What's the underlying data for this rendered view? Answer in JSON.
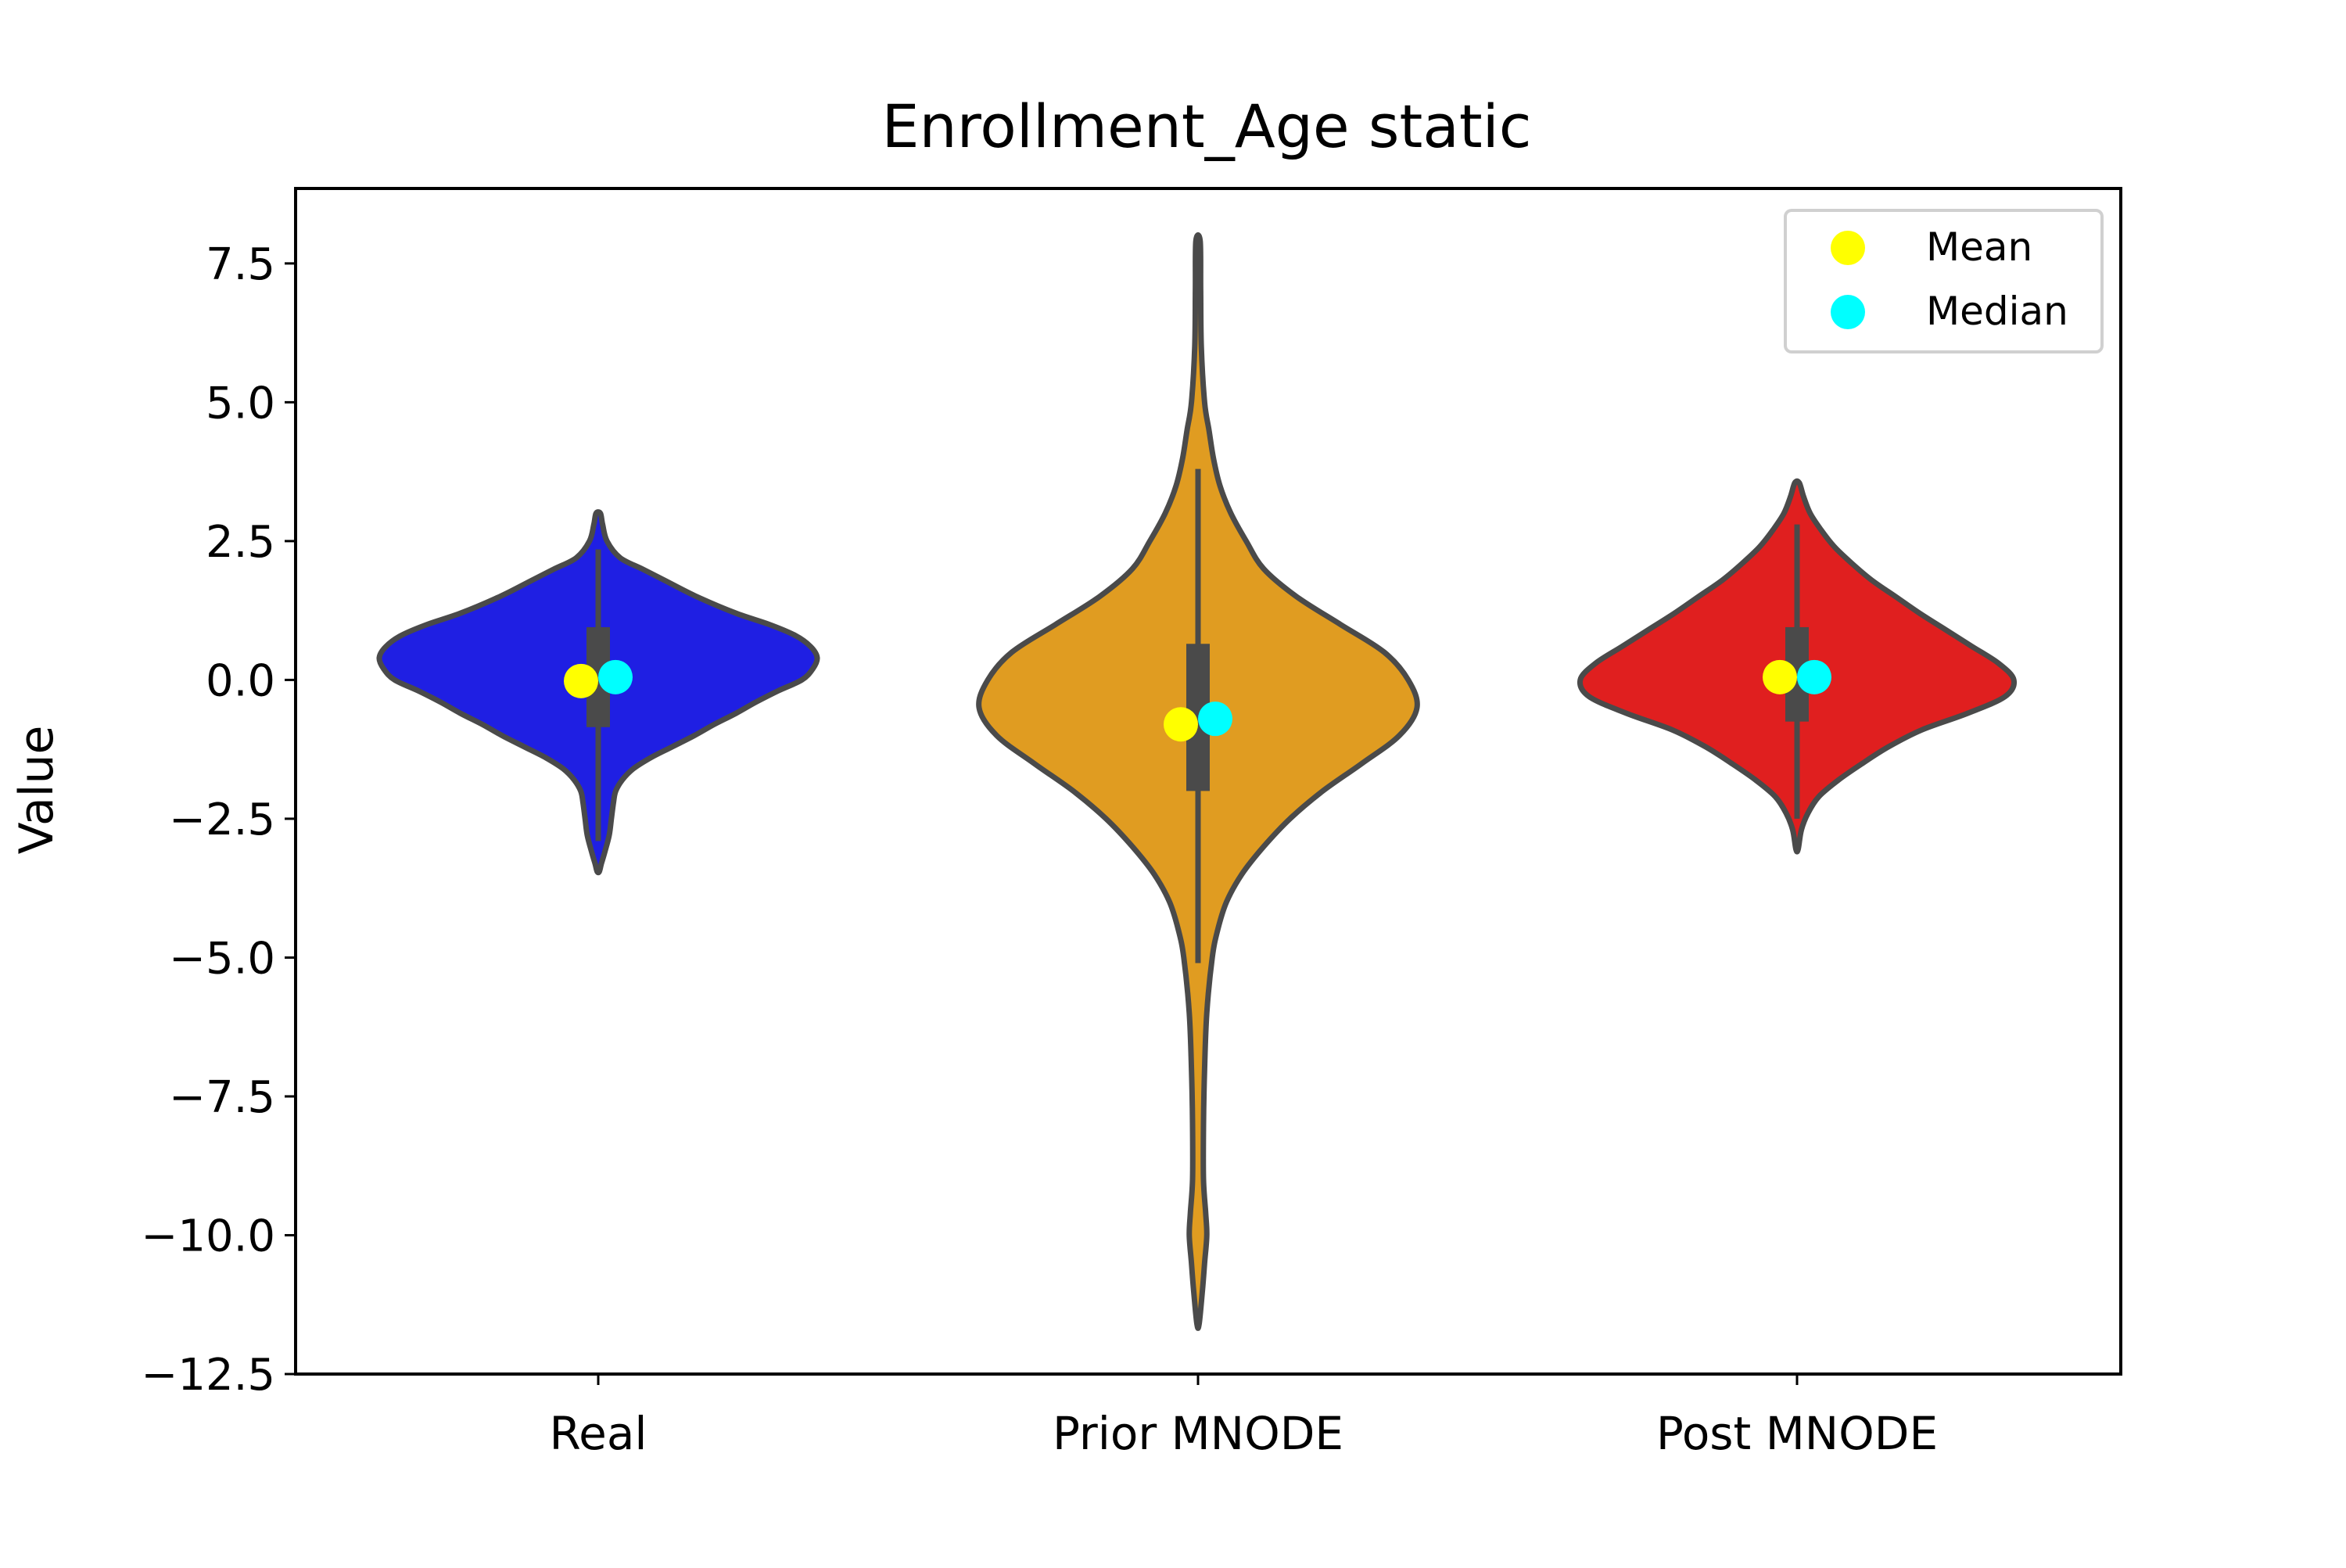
{
  "chart_data": {
    "type": "violin",
    "title": "Enrollment_Age static",
    "xlabel": "",
    "ylabel": "Value",
    "ylim": [
      -12.5,
      8.85
    ],
    "yticks": [
      7.5,
      5.0,
      2.5,
      0.0,
      -2.5,
      -5.0,
      -7.5,
      -10.0,
      -12.5
    ],
    "ytick_labels": [
      "7.5",
      "5.0",
      "2.5",
      "0.0",
      "−2.5",
      "−5.0",
      "−7.5",
      "−10.0",
      "−12.5"
    ],
    "categories": [
      "Real",
      "Prior MNODE",
      "Post MNODE"
    ],
    "grid": false,
    "legend": {
      "position": "top-right",
      "entries": [
        {
          "label": "Mean",
          "color": "#ffff00"
        },
        {
          "label": "Median",
          "color": "#00ffff"
        }
      ]
    },
    "violins": [
      {
        "name": "Real",
        "color": "#1f1fe3",
        "min": -3.45,
        "max": 3.0,
        "q1": -0.85,
        "q3": 0.95,
        "whisker_low": -2.9,
        "whisker_high": 2.35,
        "mean": -0.02,
        "median": 0.05,
        "profile": [
          [
            3.0,
            0.01
          ],
          [
            2.8,
            0.02
          ],
          [
            2.5,
            0.04
          ],
          [
            2.2,
            0.1
          ],
          [
            2.0,
            0.2
          ],
          [
            1.8,
            0.3
          ],
          [
            1.5,
            0.45
          ],
          [
            1.2,
            0.63
          ],
          [
            1.0,
            0.78
          ],
          [
            0.8,
            0.9
          ],
          [
            0.6,
            0.97
          ],
          [
            0.4,
            1.0
          ],
          [
            0.2,
            0.98
          ],
          [
            0.0,
            0.93
          ],
          [
            -0.2,
            0.82
          ],
          [
            -0.4,
            0.72
          ],
          [
            -0.6,
            0.63
          ],
          [
            -0.8,
            0.53
          ],
          [
            -1.0,
            0.44
          ],
          [
            -1.2,
            0.34
          ],
          [
            -1.4,
            0.24
          ],
          [
            -1.6,
            0.16
          ],
          [
            -1.8,
            0.11
          ],
          [
            -2.0,
            0.08
          ],
          [
            -2.2,
            0.07
          ],
          [
            -2.5,
            0.06
          ],
          [
            -2.8,
            0.05
          ],
          [
            -3.1,
            0.03
          ],
          [
            -3.3,
            0.015
          ],
          [
            -3.45,
            0.005
          ]
        ]
      },
      {
        "name": "Prior MNODE",
        "color": "#e09c21",
        "min": -11.6,
        "max": 7.9,
        "q1": -2.0,
        "q3": 0.65,
        "whisker_low": -5.1,
        "whisker_high": 3.8,
        "mean": -0.8,
        "median": -0.7,
        "profile": [
          [
            7.9,
            0.01
          ],
          [
            7.0,
            0.012
          ],
          [
            6.0,
            0.015
          ],
          [
            5.0,
            0.03
          ],
          [
            4.5,
            0.05
          ],
          [
            4.0,
            0.07
          ],
          [
            3.5,
            0.1
          ],
          [
            3.0,
            0.15
          ],
          [
            2.5,
            0.22
          ],
          [
            2.0,
            0.3
          ],
          [
            1.5,
            0.45
          ],
          [
            1.0,
            0.65
          ],
          [
            0.5,
            0.85
          ],
          [
            0.0,
            0.96
          ],
          [
            -0.5,
            1.0
          ],
          [
            -1.0,
            0.92
          ],
          [
            -1.5,
            0.75
          ],
          [
            -2.0,
            0.57
          ],
          [
            -2.5,
            0.42
          ],
          [
            -3.0,
            0.3
          ],
          [
            -3.5,
            0.2
          ],
          [
            -4.0,
            0.13
          ],
          [
            -4.5,
            0.09
          ],
          [
            -5.0,
            0.065
          ],
          [
            -6.0,
            0.04
          ],
          [
            -7.0,
            0.03
          ],
          [
            -8.0,
            0.025
          ],
          [
            -9.0,
            0.025
          ],
          [
            -9.6,
            0.035
          ],
          [
            -10.0,
            0.04
          ],
          [
            -10.5,
            0.03
          ],
          [
            -11.0,
            0.02
          ],
          [
            -11.6,
            0.005
          ]
        ]
      },
      {
        "name": "Post MNODE",
        "color": "#e01f1f",
        "min": -3.05,
        "max": 3.55,
        "q1": -0.75,
        "q3": 0.95,
        "whisker_low": -2.5,
        "whisker_high": 2.8,
        "mean": 0.05,
        "median": 0.05,
        "profile": [
          [
            3.55,
            0.01
          ],
          [
            3.3,
            0.03
          ],
          [
            3.0,
            0.06
          ],
          [
            2.7,
            0.11
          ],
          [
            2.4,
            0.17
          ],
          [
            2.1,
            0.25
          ],
          [
            1.8,
            0.34
          ],
          [
            1.5,
            0.45
          ],
          [
            1.2,
            0.56
          ],
          [
            0.9,
            0.68
          ],
          [
            0.6,
            0.8
          ],
          [
            0.3,
            0.92
          ],
          [
            0.0,
            0.99
          ],
          [
            -0.3,
            0.95
          ],
          [
            -0.6,
            0.78
          ],
          [
            -0.9,
            0.57
          ],
          [
            -1.2,
            0.42
          ],
          [
            -1.5,
            0.3
          ],
          [
            -1.8,
            0.19
          ],
          [
            -2.1,
            0.1
          ],
          [
            -2.4,
            0.05
          ],
          [
            -2.7,
            0.02
          ],
          [
            -3.05,
            0.005
          ]
        ]
      }
    ]
  }
}
